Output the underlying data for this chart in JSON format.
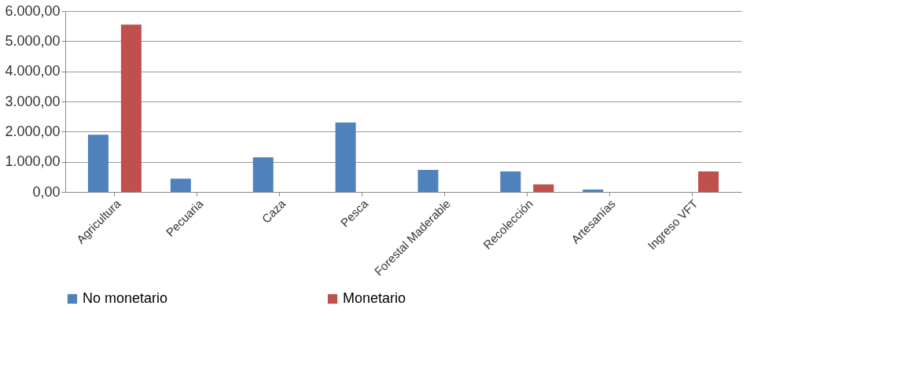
{
  "chart_data": {
    "type": "bar",
    "categories": [
      "Agricultura",
      "Pecuaria",
      "Caza",
      "Pesca",
      "Forestal Maderable",
      "Recolección",
      "Artesanías",
      "Ingreso VFT"
    ],
    "series": [
      {
        "name": "No monetario",
        "color": "#4f81bd",
        "values": [
          1900,
          440,
          1150,
          2300,
          730,
          680,
          80,
          null
        ]
      },
      {
        "name": "Monetario",
        "color": "#c0504d",
        "values": [
          5550,
          0,
          0,
          0,
          0,
          250,
          0,
          680
        ]
      }
    ],
    "ylim": [
      0,
      6000
    ],
    "yticks": [
      {
        "value": 0,
        "label": "0,00"
      },
      {
        "value": 1000,
        "label": "1.000,00"
      },
      {
        "value": 2000,
        "label": "2.000,00"
      },
      {
        "value": 3000,
        "label": "3.000,00"
      },
      {
        "value": 4000,
        "label": "4.000,00"
      },
      {
        "value": 5000,
        "label": "5.000,00"
      },
      {
        "value": 6000,
        "label": "6.000,00"
      }
    ],
    "grid": "y",
    "legend": "bottom"
  }
}
